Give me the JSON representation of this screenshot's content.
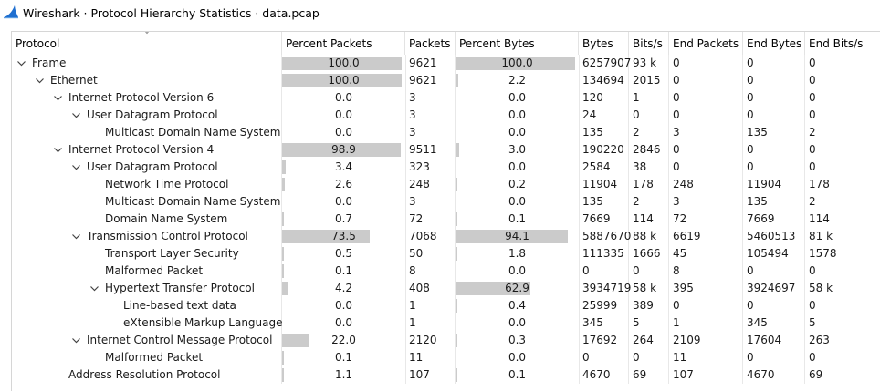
{
  "window": {
    "title": "Wireshark · Protocol Hierarchy Statistics · data.pcap"
  },
  "columns": [
    "Protocol",
    "Percent Packets",
    "Packets",
    "Percent Bytes",
    "Bytes",
    "Bits/s",
    "End Packets",
    "End Bytes",
    "End Bits/s"
  ],
  "rows": [
    {
      "name": "Frame",
      "level": 0,
      "expandable": true,
      "pct_packets": "100.0",
      "pct_packets_fill": 1.0,
      "packets": "9621",
      "pct_bytes": "100.0",
      "pct_bytes_fill": 1.0,
      "bytes": "6257907",
      "bits_s": "93 k",
      "end_packets": "0",
      "end_bytes": "0",
      "end_bits_s": "0"
    },
    {
      "name": "Ethernet",
      "level": 1,
      "expandable": true,
      "pct_packets": "100.0",
      "pct_packets_fill": 1.0,
      "packets": "9621",
      "pct_bytes": "2.2",
      "pct_bytes_fill": 0.022,
      "bytes": "134694",
      "bits_s": "2015",
      "end_packets": "0",
      "end_bytes": "0",
      "end_bits_s": "0"
    },
    {
      "name": "Internet Protocol Version 6",
      "level": 2,
      "expandable": true,
      "pct_packets": "0.0",
      "pct_packets_fill": 0,
      "packets": "3",
      "pct_bytes": "0.0",
      "pct_bytes_fill": 0,
      "bytes": "120",
      "bits_s": "1",
      "end_packets": "0",
      "end_bytes": "0",
      "end_bits_s": "0"
    },
    {
      "name": "User Datagram Protocol",
      "level": 3,
      "expandable": true,
      "pct_packets": "0.0",
      "pct_packets_fill": 0,
      "packets": "3",
      "pct_bytes": "0.0",
      "pct_bytes_fill": 0,
      "bytes": "24",
      "bits_s": "0",
      "end_packets": "0",
      "end_bytes": "0",
      "end_bits_s": "0"
    },
    {
      "name": "Multicast Domain Name System",
      "level": 4,
      "expandable": false,
      "pct_packets": "0.0",
      "pct_packets_fill": 0,
      "packets": "3",
      "pct_bytes": "0.0",
      "pct_bytes_fill": 0,
      "bytes": "135",
      "bits_s": "2",
      "end_packets": "3",
      "end_bytes": "135",
      "end_bits_s": "2"
    },
    {
      "name": "Internet Protocol Version 4",
      "level": 2,
      "expandable": true,
      "pct_packets": "98.9",
      "pct_packets_fill": 0.989,
      "packets": "9511",
      "pct_bytes": "3.0",
      "pct_bytes_fill": 0.03,
      "bytes": "190220",
      "bits_s": "2846",
      "end_packets": "0",
      "end_bytes": "0",
      "end_bits_s": "0"
    },
    {
      "name": "User Datagram Protocol",
      "level": 3,
      "expandable": true,
      "pct_packets": "3.4",
      "pct_packets_fill": 0.034,
      "packets": "323",
      "pct_bytes": "0.0",
      "pct_bytes_fill": 0,
      "bytes": "2584",
      "bits_s": "38",
      "end_packets": "0",
      "end_bytes": "0",
      "end_bits_s": "0"
    },
    {
      "name": "Network Time Protocol",
      "level": 4,
      "expandable": false,
      "pct_packets": "2.6",
      "pct_packets_fill": 0.026,
      "packets": "248",
      "pct_bytes": "0.2",
      "pct_bytes_fill": 0.002,
      "bytes": "11904",
      "bits_s": "178",
      "end_packets": "248",
      "end_bytes": "11904",
      "end_bits_s": "178"
    },
    {
      "name": "Multicast Domain Name System",
      "level": 4,
      "expandable": false,
      "pct_packets": "0.0",
      "pct_packets_fill": 0,
      "packets": "3",
      "pct_bytes": "0.0",
      "pct_bytes_fill": 0,
      "bytes": "135",
      "bits_s": "2",
      "end_packets": "3",
      "end_bytes": "135",
      "end_bits_s": "2"
    },
    {
      "name": "Domain Name System",
      "level": 4,
      "expandable": false,
      "pct_packets": "0.7",
      "pct_packets_fill": 0.007,
      "packets": "72",
      "pct_bytes": "0.1",
      "pct_bytes_fill": 0.001,
      "bytes": "7669",
      "bits_s": "114",
      "end_packets": "72",
      "end_bytes": "7669",
      "end_bits_s": "114"
    },
    {
      "name": "Transmission Control Protocol",
      "level": 3,
      "expandable": true,
      "pct_packets": "73.5",
      "pct_packets_fill": 0.735,
      "packets": "7068",
      "pct_bytes": "94.1",
      "pct_bytes_fill": 0.941,
      "bytes": "5887670",
      "bits_s": "88 k",
      "end_packets": "6619",
      "end_bytes": "5460513",
      "end_bits_s": "81 k"
    },
    {
      "name": "Transport Layer Security",
      "level": 4,
      "expandable": false,
      "pct_packets": "0.5",
      "pct_packets_fill": 0.005,
      "packets": "50",
      "pct_bytes": "1.8",
      "pct_bytes_fill": 0.018,
      "bytes": "111335",
      "bits_s": "1666",
      "end_packets": "45",
      "end_bytes": "105494",
      "end_bits_s": "1578"
    },
    {
      "name": "Malformed Packet",
      "level": 4,
      "expandable": false,
      "pct_packets": "0.1",
      "pct_packets_fill": 0.001,
      "packets": "8",
      "pct_bytes": "0.0",
      "pct_bytes_fill": 0,
      "bytes": "0",
      "bits_s": "0",
      "end_packets": "8",
      "end_bytes": "0",
      "end_bits_s": "0"
    },
    {
      "name": "Hypertext Transfer Protocol",
      "level": 4,
      "expandable": true,
      "pct_packets": "4.2",
      "pct_packets_fill": 0.042,
      "packets": "408",
      "pct_bytes": "62.9",
      "pct_bytes_fill": 0.629,
      "bytes": "3934719",
      "bits_s": "58 k",
      "end_packets": "395",
      "end_bytes": "3924697",
      "end_bits_s": "58 k"
    },
    {
      "name": "Line-based text data",
      "level": 5,
      "expandable": false,
      "pct_packets": "0.0",
      "pct_packets_fill": 0,
      "packets": "1",
      "pct_bytes": "0.4",
      "pct_bytes_fill": 0.004,
      "bytes": "25999",
      "bits_s": "389",
      "end_packets": "0",
      "end_bytes": "0",
      "end_bits_s": "0"
    },
    {
      "name": "eXtensible Markup Language",
      "level": 5,
      "expandable": false,
      "pct_packets": "0.0",
      "pct_packets_fill": 0,
      "packets": "1",
      "pct_bytes": "0.0",
      "pct_bytes_fill": 0,
      "bytes": "345",
      "bits_s": "5",
      "end_packets": "1",
      "end_bytes": "345",
      "end_bits_s": "5"
    },
    {
      "name": "Internet Control Message Protocol",
      "level": 3,
      "expandable": true,
      "pct_packets": "22.0",
      "pct_packets_fill": 0.22,
      "packets": "2120",
      "pct_bytes": "0.3",
      "pct_bytes_fill": 0.003,
      "bytes": "17692",
      "bits_s": "264",
      "end_packets": "2109",
      "end_bytes": "17604",
      "end_bits_s": "263"
    },
    {
      "name": "Malformed Packet",
      "level": 4,
      "expandable": false,
      "pct_packets": "0.1",
      "pct_packets_fill": 0.001,
      "packets": "11",
      "pct_bytes": "0.0",
      "pct_bytes_fill": 0,
      "bytes": "0",
      "bits_s": "0",
      "end_packets": "11",
      "end_bytes": "0",
      "end_bits_s": "0"
    },
    {
      "name": "Address Resolution Protocol",
      "level": 2,
      "expandable": false,
      "pct_packets": "1.1",
      "pct_packets_fill": 0.011,
      "packets": "107",
      "pct_bytes": "0.1",
      "pct_bytes_fill": 0.001,
      "bytes": "4670",
      "bits_s": "69",
      "end_packets": "107",
      "end_bytes": "4670",
      "end_bits_s": "69"
    }
  ],
  "colors": {
    "bar_fill": "#cbcbcb",
    "grid_line": "#e8e8e8",
    "accent": "#1f6fd0"
  },
  "icons": {
    "app": "wireshark-fin-icon",
    "expand": "chevron-down-icon",
    "sort": "sort-indicator-icon"
  }
}
